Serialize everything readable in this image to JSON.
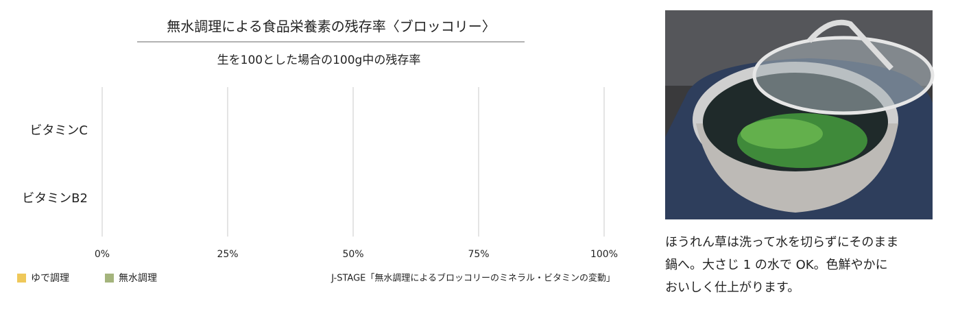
{
  "chart_data": {
    "type": "barh",
    "title": "無水調理による食品栄養素の残存率〈ブロッコリー〉",
    "subtitle": "生を100とした場合の100g中の残存率",
    "categories": [
      "ビタミンC",
      "ビタミンB2"
    ],
    "series": [
      {
        "name": "ゆで調理",
        "color": "#efc85a",
        "values": [
          null,
          null
        ]
      },
      {
        "name": "無水調理",
        "color": "#a4b47c",
        "values": [
          null,
          null
        ]
      }
    ],
    "xlim": [
      0,
      100
    ],
    "xticks": [
      {
        "value": 0,
        "label": "0%"
      },
      {
        "value": 25,
        "label": "25%"
      },
      {
        "value": 50,
        "label": "50%"
      },
      {
        "value": 75,
        "label": "75%"
      },
      {
        "value": 100,
        "label": "100%"
      }
    ],
    "grid": true,
    "source": "J-STAGE「無水調理によるブロッコリーのミネラル・ビタミンの変動」"
  },
  "caption": [
    "ほうれん草は洗って水を切らずにそのまま",
    "鍋へ。大さじ 1 の水で OK。色鮮やかに",
    "おいしく仕上がります。"
  ]
}
